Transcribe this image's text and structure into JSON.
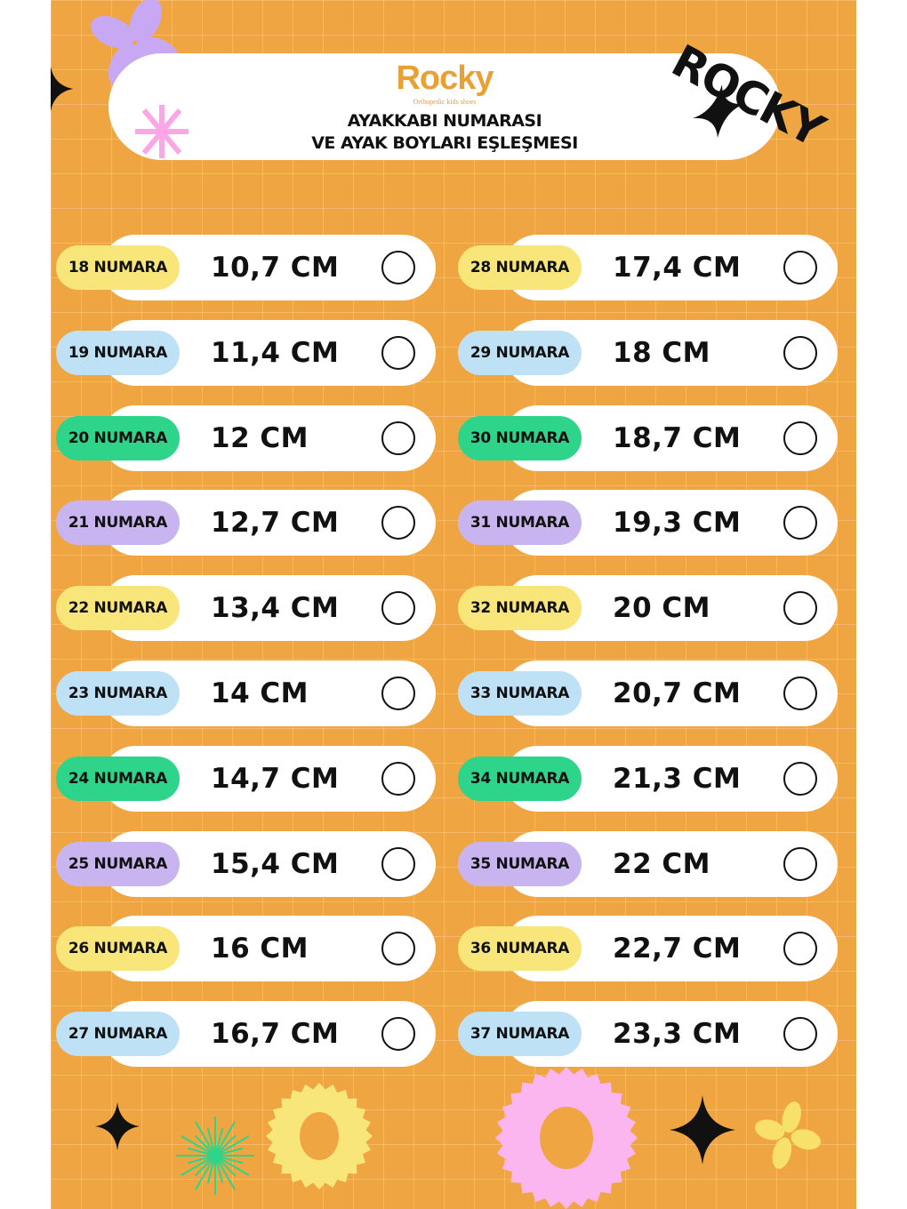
{
  "header": {
    "brand": "Rocky",
    "brand_tagline": "Orthopedic kids shoes",
    "title_line1": "AYAKKABI NUMARASI",
    "title_line2": "VE AYAK BOYLARI EŞLEŞMESI",
    "side_logo": "ROCKY"
  },
  "colors": {
    "background": "#EFA542",
    "yellow": "#F8E67A",
    "blue": "#BEE1F6",
    "green": "#2ED48A",
    "purple": "#C8B5F0",
    "pink": "#FBB6EF"
  },
  "badge_color_cycle": [
    "yellow",
    "blue",
    "green",
    "purple"
  ],
  "columns": [
    [
      {
        "label": "18 NUMARA",
        "size": "10,7 CM"
      },
      {
        "label": "19 NUMARA",
        "size": "11,4 CM"
      },
      {
        "label": "20 NUMARA",
        "size": "12 CM"
      },
      {
        "label": "21 NUMARA",
        "size": "12,7 CM"
      },
      {
        "label": "22 NUMARA",
        "size": "13,4 CM"
      },
      {
        "label": "23 NUMARA",
        "size": "14 CM"
      },
      {
        "label": "24 NUMARA",
        "size": "14,7 CM"
      },
      {
        "label": "25 NUMARA",
        "size": "15,4 CM"
      },
      {
        "label": "26 NUMARA",
        "size": "16 CM"
      },
      {
        "label": "27 NUMARA",
        "size": "16,7 CM"
      }
    ],
    [
      {
        "label": "28 NUMARA",
        "size": "17,4 CM"
      },
      {
        "label": "29 NUMARA",
        "size": "18 CM"
      },
      {
        "label": "30 NUMARA",
        "size": "18,7 CM"
      },
      {
        "label": "31 NUMARA",
        "size": "19,3 CM"
      },
      {
        "label": "32 NUMARA",
        "size": "20 CM"
      },
      {
        "label": "33 NUMARA",
        "size": "20,7 CM"
      },
      {
        "label": "34 NUMARA",
        "size": "21,3 CM"
      },
      {
        "label": "35 NUMARA",
        "size": "22 CM"
      },
      {
        "label": "36 NUMARA",
        "size": "22,7 CM"
      },
      {
        "label": "37 NUMARA",
        "size": "23,3 CM"
      }
    ]
  ]
}
